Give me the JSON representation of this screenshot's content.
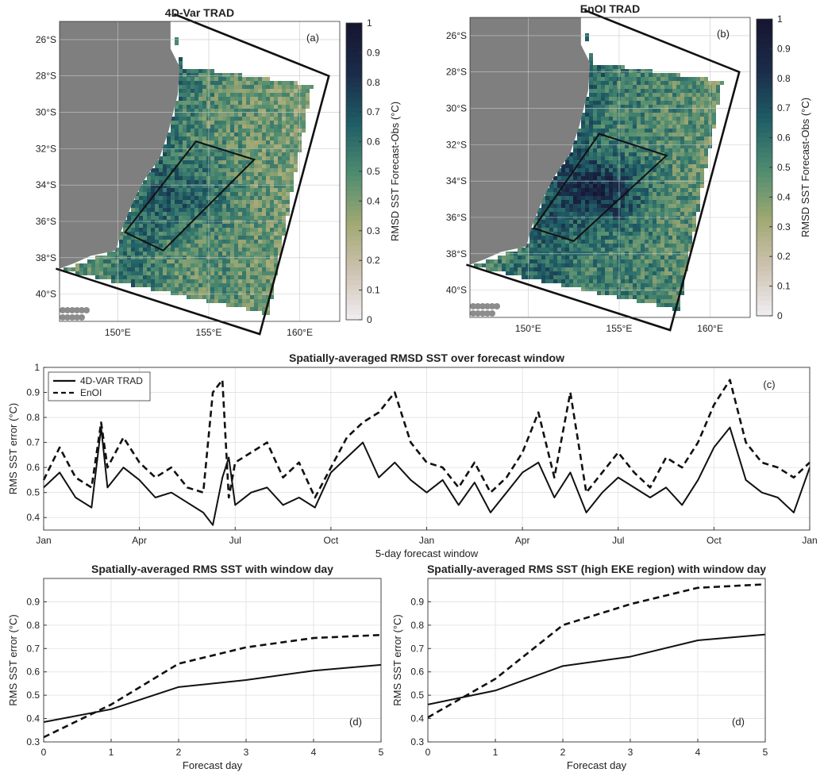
{
  "chart_data": [
    {
      "id": "a",
      "type": "heatmap",
      "title": "4D-Var TRAD",
      "panel_label": "(a)",
      "lat_ticks": [
        "26°S",
        "28°S",
        "30°S",
        "32°S",
        "34°S",
        "36°S",
        "38°S",
        "40°S"
      ],
      "lon_ticks": [
        "150°E",
        "155°E",
        "160°E"
      ],
      "lat_range": [
        -41.5,
        -25
      ],
      "lon_range": [
        146.8,
        162.2
      ],
      "colorbar": {
        "label": "RMSD SST Forecast-Obs (°C)",
        "ticks": [
          "0",
          "0.1",
          "0.2",
          "0.3",
          "0.4",
          "0.5",
          "0.6",
          "0.7",
          "0.8",
          "0.9",
          "1"
        ],
        "range": [
          0,
          1
        ]
      },
      "colormap": [
        "#f2f0f5",
        "#cfc4b2",
        "#a0a873",
        "#4e8c70",
        "#1f5e66",
        "#1a2c4a",
        "#161632"
      ]
    },
    {
      "id": "b",
      "type": "heatmap",
      "title": "EnOI TRAD",
      "panel_label": "(b)",
      "lat_ticks": [
        "26°S",
        "28°S",
        "30°S",
        "32°S",
        "34°S",
        "36°S",
        "38°S",
        "40°S"
      ],
      "lon_ticks": [
        "150°E",
        "155°E",
        "160°E"
      ],
      "lat_range": [
        -41.5,
        -25
      ],
      "lon_range": [
        146.8,
        162.2
      ],
      "colorbar": {
        "label": "RMSD SST Forecast-Obs (°C)",
        "ticks": [
          "0",
          "0.1",
          "0.2",
          "0.3",
          "0.4",
          "0.5",
          "0.6",
          "0.7",
          "0.8",
          "0.9",
          "1"
        ],
        "range": [
          0,
          1
        ]
      },
      "colormap": [
        "#f2f0f5",
        "#cfc4b2",
        "#a0a873",
        "#4e8c70",
        "#1f5e66",
        "#1a2c4a",
        "#161632"
      ]
    },
    {
      "id": "c",
      "type": "line",
      "title": "Spatially-averaged RMSD SST over forecast window",
      "panel_label": "(c)",
      "xlabel": "5-day forecast window",
      "ylabel": "RMS SST error (°C)",
      "xlim": [
        0,
        24
      ],
      "ylim": [
        0.35,
        1
      ],
      "x_ticks": [
        {
          "v": 0,
          "label": "Jan"
        },
        {
          "v": 3,
          "label": "Apr"
        },
        {
          "v": 6,
          "label": "Jul"
        },
        {
          "v": 9,
          "label": "Oct"
        },
        {
          "v": 12,
          "label": "Jan"
        },
        {
          "v": 15,
          "label": "Apr"
        },
        {
          "v": 18,
          "label": "Jul"
        },
        {
          "v": 21,
          "label": "Oct"
        },
        {
          "v": 24,
          "label": "Jan"
        }
      ],
      "y_ticks": [
        0.4,
        0.5,
        0.6,
        0.7,
        0.8,
        0.9,
        1
      ],
      "legend_position": "top-left",
      "series": [
        {
          "name": "4D-VAR TRAD",
          "style": "solid",
          "x": [
            0,
            0.5,
            1,
            1.5,
            1.8,
            2,
            2.5,
            3,
            3.5,
            4,
            4.5,
            5,
            5.3,
            5.6,
            5.8,
            6,
            6.5,
            7,
            7.5,
            8,
            8.5,
            9,
            9.5,
            10,
            10.5,
            11,
            11.5,
            12,
            12.5,
            13,
            13.5,
            14,
            14.5,
            15,
            15.5,
            16,
            16.5,
            17,
            17.5,
            18,
            18.5,
            19,
            19.5,
            20,
            20.5,
            21,
            21.5,
            22,
            22.5,
            23,
            23.5,
            24
          ],
          "y": [
            0.52,
            0.58,
            0.48,
            0.44,
            0.76,
            0.52,
            0.6,
            0.55,
            0.48,
            0.5,
            0.46,
            0.42,
            0.37,
            0.56,
            0.64,
            0.45,
            0.5,
            0.52,
            0.45,
            0.48,
            0.44,
            0.58,
            0.64,
            0.7,
            0.56,
            0.62,
            0.55,
            0.5,
            0.55,
            0.45,
            0.54,
            0.42,
            0.5,
            0.58,
            0.62,
            0.48,
            0.58,
            0.42,
            0.5,
            0.56,
            0.52,
            0.48,
            0.52,
            0.45,
            0.55,
            0.68,
            0.76,
            0.55,
            0.5,
            0.48,
            0.42,
            0.6
          ]
        },
        {
          "name": "EnOI",
          "style": "dashed",
          "x": [
            0,
            0.5,
            1,
            1.5,
            1.8,
            2,
            2.5,
            3,
            3.5,
            4,
            4.5,
            5,
            5.3,
            5.6,
            5.8,
            6,
            6.5,
            7,
            7.5,
            8,
            8.5,
            9,
            9.5,
            10,
            10.5,
            11,
            11.5,
            12,
            12.5,
            13,
            13.5,
            14,
            14.5,
            15,
            15.5,
            16,
            16.5,
            17,
            17.5,
            18,
            18.5,
            19,
            19.5,
            20,
            20.5,
            21,
            21.5,
            22,
            22.5,
            23,
            23.5,
            24
          ],
          "y": [
            0.55,
            0.68,
            0.56,
            0.52,
            0.78,
            0.6,
            0.72,
            0.62,
            0.56,
            0.6,
            0.52,
            0.5,
            0.9,
            0.95,
            0.48,
            0.62,
            0.66,
            0.7,
            0.56,
            0.62,
            0.48,
            0.6,
            0.72,
            0.78,
            0.82,
            0.9,
            0.7,
            0.62,
            0.6,
            0.52,
            0.62,
            0.5,
            0.56,
            0.66,
            0.82,
            0.56,
            0.9,
            0.5,
            0.58,
            0.66,
            0.58,
            0.52,
            0.64,
            0.6,
            0.7,
            0.85,
            0.95,
            0.7,
            0.62,
            0.6,
            0.56,
            0.62
          ]
        }
      ]
    },
    {
      "id": "d1",
      "type": "line",
      "title": "Spatially-averaged RMS SST with window day",
      "panel_label": "(d)",
      "xlabel": "Forecast day",
      "ylabel": "RMS SST error (°C)",
      "xlim": [
        0,
        5
      ],
      "ylim": [
        0.3,
        1
      ],
      "x_ticks": [
        0,
        1,
        2,
        3,
        4,
        5
      ],
      "y_ticks": [
        0.3,
        0.4,
        0.5,
        0.6,
        0.7,
        0.8,
        0.9
      ],
      "series": [
        {
          "style": "solid",
          "x": [
            0,
            1,
            2,
            3,
            4,
            5
          ],
          "y": [
            0.385,
            0.44,
            0.535,
            0.565,
            0.605,
            0.63
          ]
        },
        {
          "style": "dashed",
          "x": [
            0,
            1,
            2,
            3,
            4,
            5
          ],
          "y": [
            0.32,
            0.46,
            0.635,
            0.705,
            0.745,
            0.758
          ]
        }
      ]
    },
    {
      "id": "d2",
      "type": "line",
      "title": "Spatially-averaged RMS SST (high EKE region) with window day",
      "panel_label": "(d)",
      "xlabel": "Forecast day",
      "ylabel": "RMS SST error (°C)",
      "xlim": [
        0,
        5
      ],
      "ylim": [
        0.3,
        1
      ],
      "x_ticks": [
        0,
        1,
        2,
        3,
        4,
        5
      ],
      "y_ticks": [
        0.3,
        0.4,
        0.5,
        0.6,
        0.7,
        0.8,
        0.9
      ],
      "series": [
        {
          "style": "solid",
          "x": [
            0,
            1,
            2,
            3,
            4,
            5
          ],
          "y": [
            0.46,
            0.52,
            0.625,
            0.665,
            0.735,
            0.76
          ]
        },
        {
          "style": "dashed",
          "x": [
            0,
            1,
            2,
            3,
            4,
            5
          ],
          "y": [
            0.405,
            0.57,
            0.8,
            0.89,
            0.96,
            0.975
          ]
        }
      ]
    }
  ]
}
